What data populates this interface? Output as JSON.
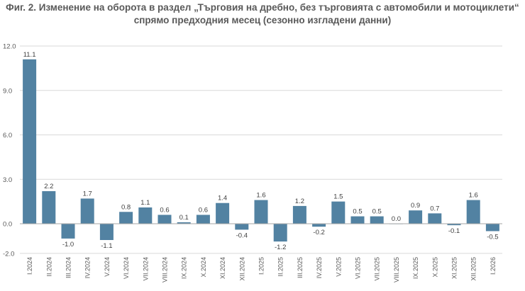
{
  "chart_data": {
    "type": "bar",
    "title_lines": [
      "Фиг. 2. Изменение на оборота в раздел „Търговия на дребно, без търговията с автомобили и мотоциклети“",
      "спрямо предходния месец (сезонно изгладени данни)"
    ],
    "categories": [
      "I.2024",
      "II.2024",
      "III.2024",
      "IV.2024",
      "V.2024",
      "VI.2024",
      "VII.2024",
      "VIII.2024",
      "IX.2024",
      "X.2024",
      "XI.2024",
      "XII.2024",
      "I.2025",
      "II.2025",
      "III.2025",
      "IV.2025",
      "V.2025",
      "VI.2025",
      "VII.2025",
      "VIII.2025",
      "IX.2025",
      "X.2025",
      "XI.2025",
      "XII.2025",
      "I.2026"
    ],
    "values": [
      11.1,
      2.2,
      -1.0,
      1.7,
      -1.1,
      0.8,
      1.1,
      0.6,
      0.1,
      0.6,
      1.4,
      -0.4,
      1.6,
      -1.2,
      1.2,
      -0.2,
      1.5,
      0.5,
      0.5,
      0.0,
      0.9,
      0.7,
      -0.1,
      1.6,
      -0.5
    ],
    "data_labels": [
      "11.1",
      "2.2",
      "-1.0",
      "1.7",
      "-1.1",
      "0.8",
      "1.1",
      "0.6",
      "0.1",
      "0.6",
      "1.4",
      "-0.4",
      "1.6",
      "-1.2",
      "1.2",
      "-0.2",
      "1.5",
      "0.5",
      "0.5",
      "0.0",
      "0.9",
      "0.7",
      "-0.1",
      "1.6",
      "-0.5"
    ],
    "y_ticks": [
      12.0,
      9.0,
      6.0,
      3.0,
      0.0,
      -2.0
    ],
    "y_tick_labels": [
      "12.0",
      "9.0",
      "6.0",
      "3.0",
      "0.0",
      "-2.0"
    ],
    "ylim": [
      -2.0,
      12.0
    ],
    "grid": true,
    "legend": "none",
    "bar_color": "#5282a2",
    "grid_color": "#d9d9d9",
    "zero_line_color": "#a6a6a6"
  }
}
